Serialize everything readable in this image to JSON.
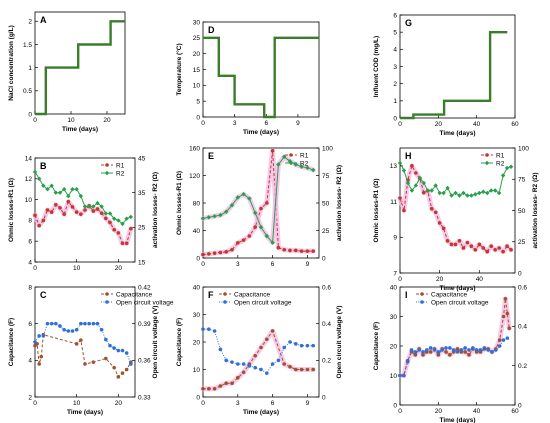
{
  "chart_data": [
    {
      "id": "A",
      "type": "line",
      "letter": "A",
      "xlabel": "Time (days)",
      "ylabel": "NaCl concentration (g/L)",
      "xlim": [
        0,
        25
      ],
      "ylim": [
        0,
        2.2
      ],
      "xticks": [
        0,
        10,
        20
      ],
      "yticks": [
        0,
        0.5,
        1,
        1.5,
        2
      ],
      "yticklabels": [
        "0",
        "0.5",
        "1",
        "1.5",
        "2"
      ],
      "series": [
        {
          "color": "#3a7d2a",
          "width": 2.4,
          "marker": "none",
          "x": [
            0,
            3,
            3,
            12,
            12,
            21,
            21,
            25
          ],
          "y": [
            0,
            0,
            1,
            1,
            1.5,
            1.5,
            2,
            2
          ]
        }
      ]
    },
    {
      "id": "D",
      "type": "line",
      "letter": "D",
      "xlabel": "Time (days)",
      "ylabel": "Temperature (°C)",
      "xlim": [
        0,
        11
      ],
      "ylim": [
        0,
        30
      ],
      "xticks": [
        0,
        3,
        6,
        9
      ],
      "yticks": [
        0,
        5,
        10,
        15,
        20,
        25,
        30
      ],
      "yticklabels": [
        "0",
        "5",
        "10",
        "15",
        "20",
        "25",
        "30"
      ],
      "series": [
        {
          "color": "#3a7d2a",
          "width": 2.4,
          "marker": "none",
          "x": [
            0,
            1.5,
            1.5,
            3,
            3,
            5.8,
            5.8,
            6.8,
            6.8,
            11
          ],
          "y": [
            25,
            25,
            13,
            13,
            4,
            4,
            0,
            0,
            25,
            25
          ]
        }
      ]
    },
    {
      "id": "G",
      "type": "line",
      "letter": "G",
      "xlabel": "Time (days)",
      "ylabel": "Influent COD (mg/L)",
      "xlim": [
        0,
        60
      ],
      "ylim": [
        0,
        6
      ],
      "xticks": [
        0,
        20,
        40,
        60
      ],
      "yticks": [
        0,
        1,
        2,
        3,
        4,
        5,
        6
      ],
      "yticklabels": [
        "0",
        "1",
        "2",
        "3",
        "4",
        "5",
        "6"
      ],
      "series": [
        {
          "color": "#3a7d2a",
          "width": 2.4,
          "marker": "none",
          "x": [
            0,
            7,
            7,
            23,
            23,
            47,
            47,
            56
          ],
          "y": [
            0,
            0,
            0.2,
            0.2,
            1,
            1,
            5,
            5
          ]
        }
      ]
    },
    {
      "id": "B",
      "type": "line",
      "letter": "B",
      "xlabel": "",
      "ylabel": "Ohmic losses-R1 (Ω)",
      "y2label": "activation losses- R2 (Ω)",
      "xlim": [
        0,
        24
      ],
      "ylim": [
        4,
        14
      ],
      "y2lim": [
        15,
        45
      ],
      "xticks": [
        0,
        10,
        20
      ],
      "yticks": [
        4,
        6,
        8,
        10,
        12,
        14
      ],
      "y2ticks": [
        15,
        25,
        35,
        45
      ],
      "legend": {
        "position": "top-right"
      },
      "series": [
        {
          "name": "R1",
          "axis": "left",
          "color": "#c0392b",
          "width": 1,
          "marker": "circle",
          "dash": "3,2",
          "highlight": true,
          "x": [
            0,
            1,
            2,
            3,
            4,
            5,
            6,
            7,
            8,
            9,
            10,
            11,
            12,
            13,
            14,
            15,
            16,
            17,
            18,
            19,
            20,
            21,
            22,
            23
          ],
          "y": [
            8.5,
            7.5,
            8,
            9,
            8.8,
            9.5,
            9.2,
            8.6,
            9.8,
            9.3,
            8.8,
            8.6,
            9.0,
            9.4,
            8.9,
            9.1,
            8.7,
            8.2,
            7.8,
            7.1,
            6.8,
            5.8,
            5.8,
            7.2
          ]
        },
        {
          "name": "R2",
          "axis": "right",
          "color": "#27a04a",
          "width": 1,
          "marker": "diamond",
          "dash": "",
          "highlight": false,
          "x": [
            0,
            1,
            2,
            3,
            4,
            5,
            6,
            7,
            8,
            9,
            10,
            11,
            12,
            13,
            14,
            15,
            16,
            17,
            18,
            19,
            20,
            21,
            22,
            23
          ],
          "y": [
            41,
            39,
            37,
            36,
            37,
            35,
            35,
            36,
            34,
            36,
            36,
            34,
            31,
            31,
            31,
            32,
            31,
            29,
            29,
            27.5,
            27,
            26,
            27.5,
            28
          ]
        }
      ]
    },
    {
      "id": "E",
      "type": "line",
      "letter": "E",
      "xlabel": "",
      "ylabel": "Ohmic losses-R1 (Ω)",
      "y2label": "activation losses- R2 (Ω)",
      "xlim": [
        0,
        10
      ],
      "ylim": [
        0,
        160
      ],
      "y2lim": [
        0,
        100
      ],
      "xticks": [
        0,
        3,
        6,
        9
      ],
      "yticks": [
        0,
        40,
        80,
        120,
        160
      ],
      "y2ticks": [
        0,
        25,
        50,
        75,
        100
      ],
      "legend": {
        "position": "top-right"
      },
      "series": [
        {
          "name": "R1",
          "axis": "left",
          "color": "#c0392b",
          "width": 1,
          "marker": "circle",
          "dash": "3,2",
          "highlight": true,
          "x": [
            0,
            0.5,
            1,
            1.5,
            2,
            2.5,
            3,
            3.5,
            4,
            4.5,
            5,
            5.5,
            6,
            6.5,
            7,
            7.5,
            8,
            8.5,
            9,
            9.5
          ],
          "y": [
            5,
            6,
            7,
            8,
            9,
            12,
            22,
            26,
            32,
            45,
            72,
            80,
            156,
            15,
            12,
            11,
            11,
            10,
            10,
            10
          ]
        },
        {
          "name": "R2",
          "axis": "right",
          "color": "#27a04a",
          "width": 1,
          "marker": "diamond",
          "dash": "",
          "highlight": true,
          "x": [
            0,
            0.5,
            1,
            1.5,
            2,
            2.5,
            3,
            3.5,
            4,
            4.5,
            5,
            5.5,
            6,
            6.5,
            7,
            7.5,
            8,
            8.5,
            9,
            9.5
          ],
          "y": [
            36,
            37,
            38,
            39,
            42,
            48,
            55,
            58,
            54,
            41,
            28,
            20,
            14,
            85,
            92,
            88,
            85,
            83,
            82,
            80
          ]
        }
      ]
    },
    {
      "id": "H",
      "type": "line",
      "letter": "H",
      "xlabel": "Time (days)",
      "ylabel": "Ohmic losses-R1 (Ω)",
      "y2label": "activation losses- R2 (Ω)",
      "xlim": [
        0,
        58
      ],
      "ylim": [
        7,
        14
      ],
      "y2lim": [
        0,
        100
      ],
      "xticks": [
        0,
        20,
        40
      ],
      "yticks": [
        7,
        9,
        11,
        13
      ],
      "y2ticks": [
        0,
        25,
        50,
        75,
        100
      ],
      "legend": {
        "position": "top-right"
      },
      "series": [
        {
          "name": "R1",
          "axis": "left",
          "color": "#c0392b",
          "width": 1,
          "marker": "circle",
          "dash": "3,2",
          "highlight": true,
          "x": [
            0,
            2,
            4,
            6,
            8,
            10,
            12,
            14,
            16,
            18,
            20,
            22,
            24,
            26,
            28,
            30,
            32,
            34,
            36,
            38,
            40,
            42,
            44,
            46,
            48,
            50,
            52,
            54,
            56
          ],
          "y": [
            11.2,
            10.5,
            12.2,
            13,
            12.6,
            12.3,
            11.5,
            11.6,
            10.6,
            10.4,
            9.8,
            9.5,
            8.8,
            8.6,
            8.6,
            8.8,
            8.4,
            8.7,
            8.5,
            8.3,
            8.6,
            8.4,
            8.2,
            8.5,
            8.3,
            8.4,
            8.2,
            8.5,
            8.3
          ]
        },
        {
          "name": "R2",
          "axis": "right",
          "color": "#27a04a",
          "width": 1,
          "marker": "diamond",
          "dash": "",
          "highlight": false,
          "x": [
            0,
            2,
            4,
            6,
            8,
            10,
            12,
            14,
            16,
            18,
            20,
            22,
            24,
            26,
            28,
            30,
            32,
            34,
            36,
            38,
            40,
            42,
            44,
            46,
            48,
            50,
            52,
            54,
            56
          ],
          "y": [
            88,
            82,
            72,
            66,
            70,
            76,
            72,
            66,
            66,
            70,
            64,
            64,
            68,
            62,
            64,
            62,
            64,
            62,
            62,
            63,
            64,
            65,
            64,
            66,
            66,
            64,
            78,
            84,
            85
          ]
        }
      ]
    },
    {
      "id": "C",
      "type": "line",
      "letter": "C",
      "xlabel": "Time (days)",
      "ylabel": "Capacitance (F)",
      "y2label": "Open circuit voltage (V)",
      "xlim": [
        0,
        24
      ],
      "ylim": [
        2,
        8
      ],
      "y2lim": [
        0.33,
        0.42
      ],
      "xticks": [
        0,
        10,
        20
      ],
      "yticks": [
        2,
        4,
        6,
        8
      ],
      "y2ticks": [
        0.33,
        0.36,
        0.39,
        0.42
      ],
      "legend": {
        "position": "top-right"
      },
      "series": [
        {
          "name": "Capacitance",
          "axis": "left",
          "color": "#a0522d",
          "width": 1,
          "marker": "circle",
          "dash": "3,2",
          "highlight": false,
          "x": [
            0,
            0.5,
            1,
            1.5,
            2,
            10,
            11,
            12,
            14,
            17,
            19,
            20,
            21,
            22,
            23
          ],
          "y": [
            4.8,
            4.9,
            3.8,
            4.2,
            5.4,
            4.9,
            5.1,
            3.8,
            3.9,
            4.1,
            3.6,
            3.1,
            3.3,
            3.5,
            3.9
          ]
        },
        {
          "name": "Open circuit voltage",
          "axis": "right",
          "color": "#2f6fd6",
          "width": 1,
          "marker": "circle",
          "dash": "1,1.5",
          "highlight": false,
          "x": [
            0,
            1,
            2,
            3,
            4,
            5,
            6,
            7,
            8,
            9,
            10,
            11,
            12,
            13,
            14,
            15,
            16,
            17,
            18,
            19,
            20,
            21,
            22,
            23
          ],
          "y": [
            0.375,
            0.38,
            0.38,
            0.39,
            0.39,
            0.39,
            0.388,
            0.385,
            0.384,
            0.384,
            0.385,
            0.39,
            0.39,
            0.39,
            0.39,
            0.39,
            0.385,
            0.377,
            0.372,
            0.37,
            0.368,
            0.368,
            0.366,
            0.357
          ]
        }
      ]
    },
    {
      "id": "F",
      "type": "line",
      "letter": "F",
      "xlabel": "Time (days)",
      "ylabel": "Capacitance (F)",
      "y2label": "Open circuit voltage (V)",
      "xlim": [
        0,
        10
      ],
      "ylim": [
        0,
        40
      ],
      "y2lim": [
        0,
        0.6
      ],
      "xticks": [
        0,
        3,
        6,
        9
      ],
      "yticks": [
        0,
        10,
        20,
        30,
        40
      ],
      "y2ticks": [
        0,
        0.2,
        0.4,
        0.6
      ],
      "legend": {
        "position": "top-left"
      },
      "series": [
        {
          "name": "Capacitance",
          "axis": "left",
          "color": "#a0522d",
          "width": 1,
          "marker": "circle",
          "dash": "3,2",
          "highlight": true,
          "x": [
            0,
            0.5,
            1,
            1.5,
            2,
            2.5,
            3,
            3.5,
            4,
            4.5,
            5,
            5.5,
            6,
            7,
            7.5,
            8,
            8.5,
            9,
            9.5
          ],
          "y": [
            3,
            3,
            3,
            4,
            5,
            5,
            7,
            9,
            12,
            15,
            18,
            21,
            24,
            12,
            11,
            10,
            10,
            10,
            10
          ]
        },
        {
          "name": "Open circuit voltage",
          "axis": "right",
          "color": "#2f6fd6",
          "width": 1,
          "marker": "circle",
          "dash": "1,1.5",
          "highlight": false,
          "x": [
            0,
            0.5,
            1,
            1.5,
            2,
            2.5,
            3,
            3.5,
            4,
            4.5,
            5,
            5.5,
            6,
            6.5,
            7,
            7.5,
            8,
            8.5,
            9,
            9.5
          ],
          "y": [
            0.37,
            0.37,
            0.36,
            0.26,
            0.2,
            0.19,
            0.18,
            0.18,
            0.17,
            0.16,
            0.15,
            0.13,
            0.18,
            0.2,
            0.27,
            0.3,
            0.29,
            0.28,
            0.28,
            0.28
          ]
        }
      ]
    },
    {
      "id": "I",
      "type": "line",
      "letter": "I",
      "xlabel": "Time (days)",
      "ylabel": "Capacitance (F)",
      "y2label": "",
      "xlim": [
        0,
        60
      ],
      "ylim": [
        0,
        40
      ],
      "y2lim": [
        0,
        0.6
      ],
      "xticks": [
        0,
        20,
        40,
        60
      ],
      "yticks": [
        0,
        10,
        20,
        30,
        40
      ],
      "y2ticks": [
        0,
        0.2,
        0.4,
        0.6
      ],
      "legend": {
        "position": "top-left"
      },
      "series": [
        {
          "name": "Capacitance",
          "axis": "left",
          "color": "#a0522d",
          "width": 1,
          "marker": "circle",
          "dash": "3,2",
          "highlight": true,
          "x": [
            0,
            2,
            4,
            6,
            8,
            10,
            12,
            14,
            16,
            18,
            20,
            22,
            24,
            26,
            28,
            30,
            32,
            34,
            36,
            38,
            40,
            42,
            44,
            46,
            48,
            50,
            52,
            54,
            55,
            56,
            57
          ],
          "y": [
            10,
            10,
            15,
            18,
            17,
            19,
            17,
            18,
            18,
            19,
            17,
            19,
            18,
            17,
            18,
            19,
            18,
            18,
            17,
            19,
            18,
            18,
            19,
            19,
            18,
            19,
            22,
            30,
            36,
            31,
            26
          ]
        },
        {
          "name": "Open circuit voltage",
          "axis": "right",
          "color": "#2f6fd6",
          "width": 1,
          "marker": "circle",
          "dash": "1,1.5",
          "highlight": false,
          "x": [
            0,
            2,
            4,
            6,
            8,
            10,
            12,
            14,
            16,
            18,
            20,
            22,
            24,
            26,
            28,
            30,
            32,
            34,
            36,
            38,
            40,
            42,
            44,
            46,
            48,
            50,
            52,
            54,
            56
          ],
          "y": [
            0.15,
            0.15,
            0.22,
            0.28,
            0.27,
            0.28,
            0.27,
            0.28,
            0.29,
            0.28,
            0.27,
            0.28,
            0.29,
            0.29,
            0.28,
            0.27,
            0.28,
            0.29,
            0.28,
            0.29,
            0.28,
            0.28,
            0.29,
            0.28,
            0.27,
            0.28,
            0.3,
            0.33,
            0.34
          ]
        }
      ]
    }
  ]
}
